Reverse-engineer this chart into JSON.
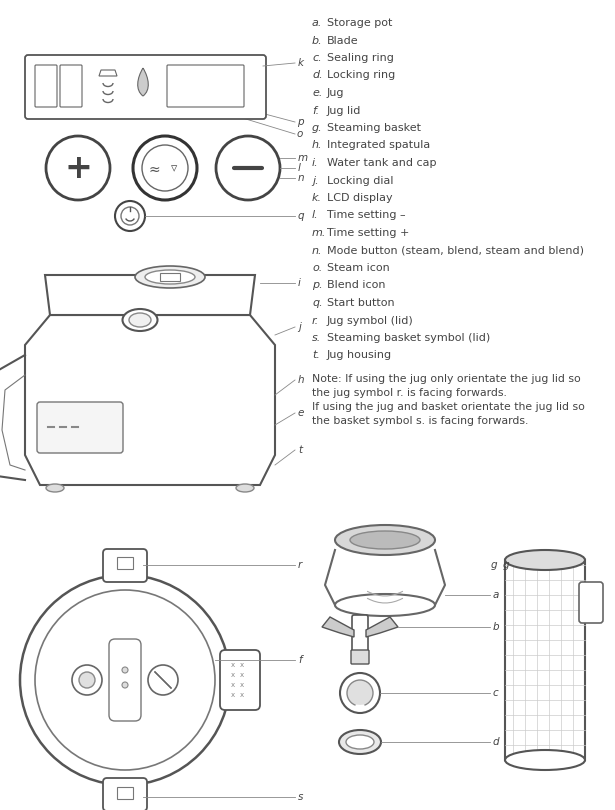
{
  "bg_color": "#ffffff",
  "text_color": "#444444",
  "line_color": "#888888",
  "labels_order": [
    "a",
    "b",
    "c",
    "d",
    "e",
    "f",
    "g",
    "h",
    "i",
    "j",
    "k",
    "l",
    "m",
    "n",
    "o",
    "p",
    "q",
    "r",
    "s",
    "t"
  ],
  "labels": {
    "a": "Storage pot",
    "b": "Blade",
    "c": "Sealing ring",
    "d": "Locking ring",
    "e": "Jug",
    "f": "Jug lid",
    "g": "Steaming basket",
    "h": "Integrated spatula",
    "i": "Water tank and cap",
    "j": "Locking dial",
    "k": "LCD display",
    "l": "Time setting –",
    "m": "Time setting +",
    "n": "Mode button (steam, blend, steam and blend)",
    "o": "Steam icon",
    "p": "Blend icon",
    "q": "Start button",
    "r": "Jug symbol (lid)",
    "s": "Steaming basket symbol (lid)",
    "t": "Jug housing"
  },
  "note_lines": [
    "Note: If using the jug only orientate the jug lid so",
    "the jug symbol r. is facing forwards.",
    "If using the jug and basket orientate the jug lid so",
    "the basket symbol s. is facing forwards."
  ],
  "fs_list": 8.0,
  "fs_note": 7.8,
  "fs_label": 7.5
}
